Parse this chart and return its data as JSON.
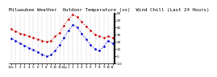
{
  "title": "Milwaukee Weather  Outdoor Temperature (vs)  Wind Chill (Last 24 Hours)",
  "temp_values": [
    38,
    35,
    32,
    30,
    28,
    26,
    24,
    22,
    20,
    22,
    28,
    33,
    43,
    52,
    58,
    55,
    48,
    42,
    36,
    30,
    28,
    26,
    28,
    26
  ],
  "wind_chill_values": [
    25,
    22,
    18,
    15,
    12,
    9,
    6,
    3,
    0,
    2,
    8,
    16,
    26,
    36,
    44,
    40,
    32,
    24,
    16,
    10,
    8,
    14,
    22,
    18
  ],
  "x_labels": [
    "12a",
    "1",
    "2",
    "3",
    "4",
    "5",
    "6",
    "7",
    "8",
    "9",
    "10",
    "11",
    "12p",
    "1",
    "2",
    "3",
    "4",
    "5",
    "6",
    "7",
    "8",
    "9",
    "10",
    "11"
  ],
  "temp_color": "#cc0000",
  "wind_chill_color": "#0000cc",
  "background_color": "#ffffff",
  "grid_color": "#888888",
  "ylim": [
    -10,
    60
  ],
  "ytick_labels": [
    "60",
    "50",
    "40",
    "30",
    "20",
    "10",
    "0",
    "-10"
  ],
  "yticks": [
    60,
    50,
    40,
    30,
    20,
    10,
    0,
    -10
  ],
  "title_fontsize": 4.2,
  "tick_fontsize": 3.0
}
